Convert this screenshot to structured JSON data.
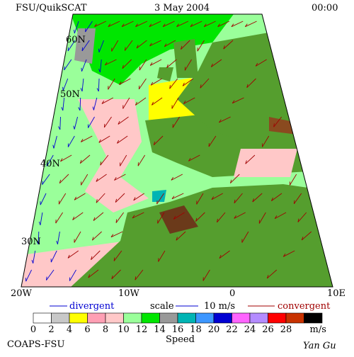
{
  "header": {
    "source": "FSU/QuikSCAT",
    "date": "3 May 2004",
    "time": "00:00"
  },
  "map": {
    "lat_labels": [
      "60N",
      "50N",
      "40N",
      "30N"
    ],
    "lon_labels": [
      "20W",
      "10W",
      "0",
      "10E"
    ]
  },
  "legend": {
    "divergent": "divergent",
    "scale": "scale",
    "scale_value": "10 m/s",
    "convergent": "convergent"
  },
  "colorbar": {
    "ticks": [
      "0",
      "2",
      "4",
      "6",
      "8",
      "10",
      "12",
      "14",
      "16",
      "18",
      "20",
      "22",
      "24",
      "26",
      "28"
    ],
    "unit": "m/s",
    "title": "Speed",
    "colors": [
      "#ffffff",
      "#c8c8c8",
      "#ffff00",
      "#ff9fb4",
      "#ffc8c8",
      "#9aff9a",
      "#00e600",
      "#999999",
      "#00b4b4",
      "#3c96ff",
      "#0000d2",
      "#ff64ff",
      "#b48cff",
      "#ff0000",
      "#c83200",
      "#000000"
    ]
  },
  "footer": {
    "left": "COAPS-FSU",
    "right": "Yan Gu"
  }
}
